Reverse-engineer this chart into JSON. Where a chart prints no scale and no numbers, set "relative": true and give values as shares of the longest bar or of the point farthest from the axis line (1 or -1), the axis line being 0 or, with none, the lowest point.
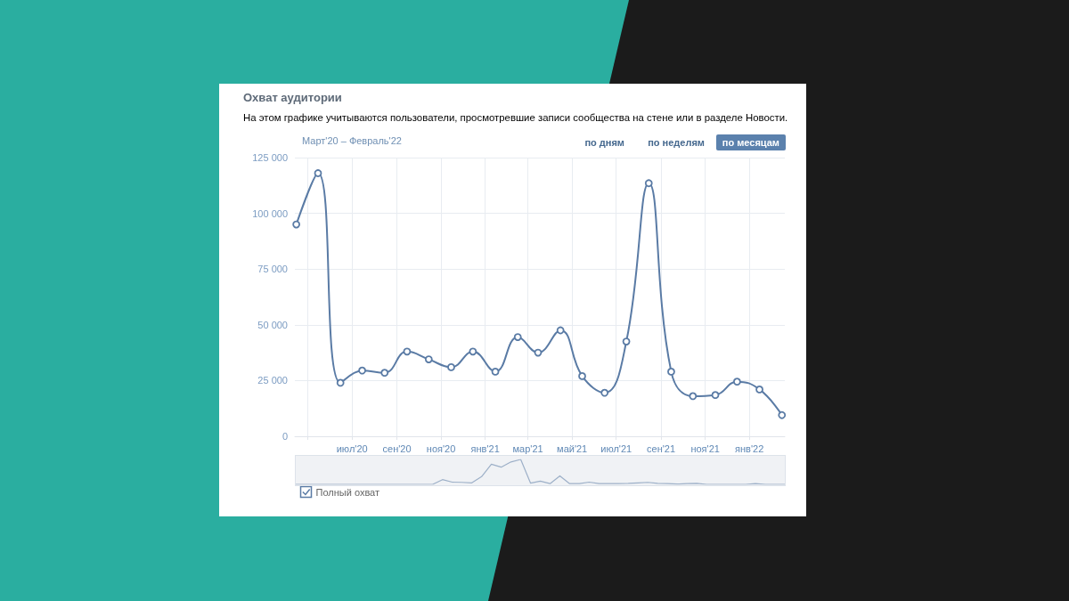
{
  "chart_data": [
    {
      "type": "line",
      "title": "Охват аудитории",
      "subtitle": "На этом графике учитываются пользователи, просмотревшие записи сообщества на стене или в разделе Новости.",
      "annotations": [
        "Март'20 – Февраль'22",
        "по дням",
        "по неделям",
        "по месяцам"
      ],
      "x": [
        "2020-04-15",
        "2020-05-15",
        "2020-06-15",
        "2020-07-15",
        "2020-08-15",
        "2020-09-15",
        "2020-10-15",
        "2020-11-15",
        "2020-12-15",
        "2021-01-15",
        "2021-02-15",
        "2021-03-15",
        "2021-04-15",
        "2021-05-15",
        "2021-06-15",
        "2021-07-15",
        "2021-08-15",
        "2021-09-15",
        "2021-10-15",
        "2021-11-15",
        "2021-12-15",
        "2022-01-15",
        "2022-02-15"
      ],
      "series": [
        {
          "name": "Полный охват",
          "color": "#5a7ba5",
          "values": [
            95000,
            118000,
            24000,
            29500,
            28500,
            38000,
            34500,
            31000,
            38000,
            29000,
            44500,
            37500,
            47500,
            27000,
            19500,
            42500,
            113500,
            29000,
            18000,
            18500,
            24500,
            21000,
            9500
          ]
        }
      ],
      "xlim": [
        "2020-04-13",
        "2022-02-19"
      ],
      "xticks": [
        {
          "value": "2020-05-01",
          "label": null
        },
        {
          "value": "2020-07-01",
          "label": "июл'20"
        },
        {
          "value": "2020-09-01",
          "label": "сен'20"
        },
        {
          "value": "2020-11-01",
          "label": "ноя'20"
        },
        {
          "value": "2021-01-01",
          "label": "янв'21"
        },
        {
          "value": "2021-03-01",
          "label": "мар'21"
        },
        {
          "value": "2021-05-01",
          "label": "май'21"
        },
        {
          "value": "2021-07-01",
          "label": "июл'21"
        },
        {
          "value": "2021-09-01",
          "label": "сен'21"
        },
        {
          "value": "2021-11-01",
          "label": "ноя'21"
        },
        {
          "value": "2022-01-01",
          "label": "янв'22"
        }
      ],
      "ylim": [
        0,
        125000
      ],
      "yticks": [
        0,
        {
          "value": 25000,
          "label": "25 000"
        },
        {
          "value": 50000,
          "label": "50 000"
        },
        {
          "value": 75000,
          "label": "75 000"
        },
        {
          "value": 100000,
          "label": "100 000"
        },
        {
          "value": 125000,
          "label": "125 000"
        }
      ],
      "grid": true,
      "legend": "bottom left",
      "marker": "circle",
      "line_style": "solid"
    },
    {
      "type": "line",
      "relative": true,
      "color": "#9db0c8",
      "categories": [
        null,
        null,
        null,
        null,
        null,
        null,
        null,
        null,
        null,
        null,
        null,
        null,
        null,
        null,
        null,
        null,
        null,
        null,
        null,
        null,
        null,
        null,
        null,
        null,
        null,
        null,
        null,
        null,
        null,
        null,
        null,
        null,
        null,
        null,
        null,
        null,
        null,
        null,
        null,
        null,
        null,
        null,
        null,
        null,
        null,
        null,
        null,
        null,
        null,
        null,
        null
      ],
      "values": [
        0,
        0,
        0,
        0,
        0,
        0,
        0,
        0,
        0,
        0,
        0,
        0,
        0,
        0,
        0,
        0.19,
        0.09,
        0.08,
        0.06,
        0.31,
        0.81,
        0.69,
        0.9,
        1,
        0.05,
        0.13,
        0.03,
        0.34,
        0.03,
        0.03,
        0.09,
        0.03,
        0.03,
        0.03,
        0.04,
        0.06,
        0.08,
        0.04,
        0.03,
        0.01,
        0.03,
        0.04,
        0,
        0,
        0,
        0,
        0,
        0.03,
        0,
        0,
        0
      ],
      "grid": false,
      "marker": "none"
    }
  ]
}
